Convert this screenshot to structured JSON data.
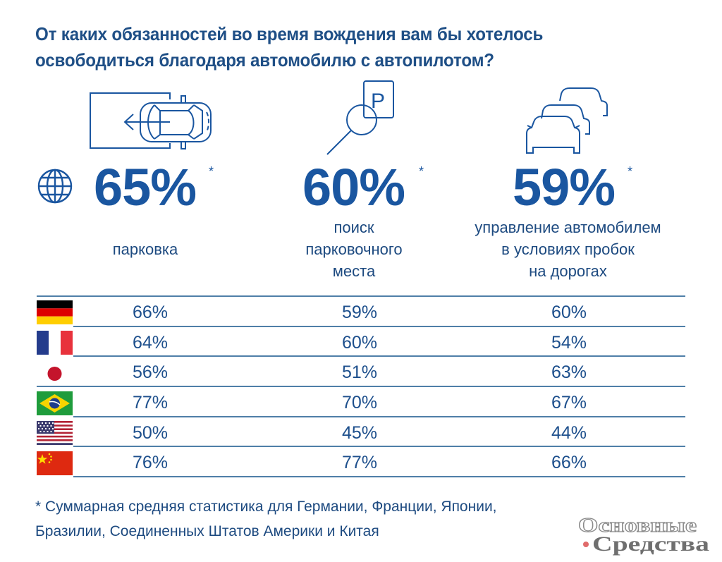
{
  "title_lines": [
    "От каких обязанностей во время вождения вам бы хотелось",
    "освободиться благодаря автомобилю с автопилотом?"
  ],
  "icons": {
    "globe": "globe-icon",
    "parking": "car-parking-icon",
    "search": "parking-search-icon",
    "traffic": "traffic-jam-icon"
  },
  "colors": {
    "primary": "#1a56a0",
    "text": "#1d4f8c",
    "line": "#4f7fa8"
  },
  "chart_data": {
    "type": "table",
    "title": "От каких обязанностей во время вождения вам бы хотелось освободиться благодаря автомобилю с автопилотом?",
    "categories": [
      "парковка",
      "поиск парковочного места",
      "управление автомобилем в условиях пробок на дорогах"
    ],
    "overall": {
      "values": [
        "65%",
        "60%",
        "59%"
      ],
      "numeric": [
        65,
        60,
        59
      ],
      "marker": "*"
    },
    "category_labels": [
      [
        "парковка"
      ],
      [
        "поиск",
        "парковочного",
        "места"
      ],
      [
        "управление автомобилем",
        "в условиях пробок",
        "на дорогах"
      ]
    ],
    "rows": [
      {
        "country": "Germany",
        "flag": "flag-germany-icon",
        "values": [
          "66%",
          "59%",
          "60%"
        ]
      },
      {
        "country": "France",
        "flag": "flag-france-icon",
        "values": [
          "64%",
          "60%",
          "54%"
        ]
      },
      {
        "country": "Japan",
        "flag": "flag-japan-icon",
        "values": [
          "56%",
          "51%",
          "63%"
        ]
      },
      {
        "country": "Brazil",
        "flag": "flag-brazil-icon",
        "values": [
          "77%",
          "70%",
          "67%"
        ]
      },
      {
        "country": "USA",
        "flag": "flag-usa-icon",
        "values": [
          "50%",
          "45%",
          "44%"
        ]
      },
      {
        "country": "China",
        "flag": "flag-china-icon",
        "values": [
          "76%",
          "77%",
          "66%"
        ]
      }
    ]
  },
  "footnote_lines": [
    "* Суммарная средняя статистика для Германии, Франции, Японии,",
    "Бразилии, Соединенных Штатов Америки и Китая"
  ],
  "logo": {
    "line1": "Основные",
    "line2": "Средства"
  }
}
